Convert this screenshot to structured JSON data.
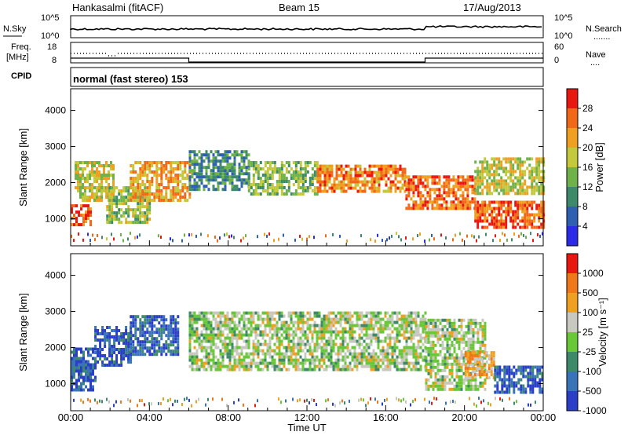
{
  "header": {
    "station": "Hankasalmi (fitACF)",
    "beam": "Beam 15",
    "date": "17/Aug/2013"
  },
  "sky_panel": {
    "left_label": "N.Sky",
    "left_ticks": [
      "10^5",
      "10^0"
    ],
    "right_label": "N.Search",
    "right_ticks": [
      "10^5",
      "10^0"
    ],
    "right_line_marker": "......."
  },
  "freq_panel": {
    "left_label_line1": "Freq.",
    "left_label_line2": "[MHz]",
    "left_ticks": [
      "18",
      "8"
    ],
    "right_label": "Nave",
    "right_ticks": [
      "60",
      "0"
    ],
    "right_line_marker": "...."
  },
  "cpid_panel": {
    "label": "CPID",
    "mode": "normal (fast stereo) 153"
  },
  "chart_data": [
    {
      "type": "heatmap",
      "name": "power",
      "ylabel": "Slant Range [km]",
      "yticks": [
        "1000",
        "2000",
        "3000",
        "4000"
      ],
      "ylim": [
        250,
        4600
      ],
      "colorbar_label": "Power [dB]",
      "colorbar_ticks": [
        "4",
        "8",
        "12",
        "16",
        "20",
        "24",
        "28"
      ],
      "colors": [
        "#2a2ae8",
        "#2e5fb0",
        "#3d8a6a",
        "#6fb24a",
        "#c4c83c",
        "#f0a020",
        "#f06818",
        "#e81810"
      ],
      "echo_bands": [
        {
          "t0": 0.0,
          "t1": 1.0,
          "r0": 800,
          "r1": 1400,
          "level": 0.85
        },
        {
          "t0": 0.2,
          "t1": 2.2,
          "r0": 1500,
          "r1": 2600,
          "level": 0.55
        },
        {
          "t0": 1.8,
          "t1": 4.0,
          "r0": 900,
          "r1": 1900,
          "level": 0.5
        },
        {
          "t0": 3.0,
          "t1": 6.0,
          "r0": 1500,
          "r1": 2600,
          "level": 0.7
        },
        {
          "t0": 6.0,
          "t1": 9.0,
          "r0": 1800,
          "r1": 2900,
          "level": 0.3
        },
        {
          "t0": 9.0,
          "t1": 12.5,
          "r0": 1700,
          "r1": 2600,
          "level": 0.45
        },
        {
          "t0": 12.5,
          "t1": 17.0,
          "r0": 1800,
          "r1": 2500,
          "level": 0.75
        },
        {
          "t0": 17.0,
          "t1": 20.5,
          "r0": 1300,
          "r1": 2200,
          "level": 0.8
        },
        {
          "t0": 20.5,
          "t1": 24.0,
          "r0": 800,
          "r1": 1500,
          "level": 0.85
        },
        {
          "t0": 20.5,
          "t1": 24.0,
          "r0": 1700,
          "r1": 2700,
          "level": 0.55
        }
      ]
    },
    {
      "type": "heatmap",
      "name": "velocity",
      "ylabel": "Slant Range [km]",
      "yticks": [
        "1000",
        "2000",
        "3000",
        "4000"
      ],
      "ylim": [
        250,
        4600
      ],
      "colorbar_label": "Velocity [m s⁻¹]",
      "colorbar_ticks": [
        "1000",
        "500",
        "100",
        "25",
        "-25",
        "-100",
        "-500",
        "-1000"
      ],
      "colors": [
        "#2a3ec8",
        "#3a74b8",
        "#3d8a6a",
        "#68c838",
        "#c8c8c0",
        "#f0a020",
        "#f07818",
        "#e81810"
      ],
      "echo_bands": [
        {
          "t0": 0.0,
          "t1": 1.2,
          "r0": 800,
          "r1": 2000,
          "level": 0.15
        },
        {
          "t0": 1.2,
          "t1": 3.0,
          "r0": 1500,
          "r1": 2600,
          "level": 0.1
        },
        {
          "t0": 3.0,
          "t1": 5.5,
          "r0": 1800,
          "r1": 2900,
          "level": 0.15
        },
        {
          "t0": 6.0,
          "t1": 18.0,
          "r0": 1400,
          "r1": 3000,
          "level": 0.5
        },
        {
          "t0": 18.0,
          "t1": 21.0,
          "r0": 800,
          "r1": 2800,
          "level": 0.5
        },
        {
          "t0": 20.0,
          "t1": 21.5,
          "r0": 1200,
          "r1": 1900,
          "level": 0.68
        },
        {
          "t0": 21.5,
          "t1": 24.0,
          "r0": 800,
          "r1": 1500,
          "level": 0.15
        }
      ]
    }
  ],
  "time_axis": {
    "ticks": [
      "00:00",
      "04:00",
      "08:00",
      "12:00",
      "16:00",
      "20:00",
      "00:00"
    ],
    "label": "Time UT",
    "xlim": [
      0,
      24
    ]
  }
}
